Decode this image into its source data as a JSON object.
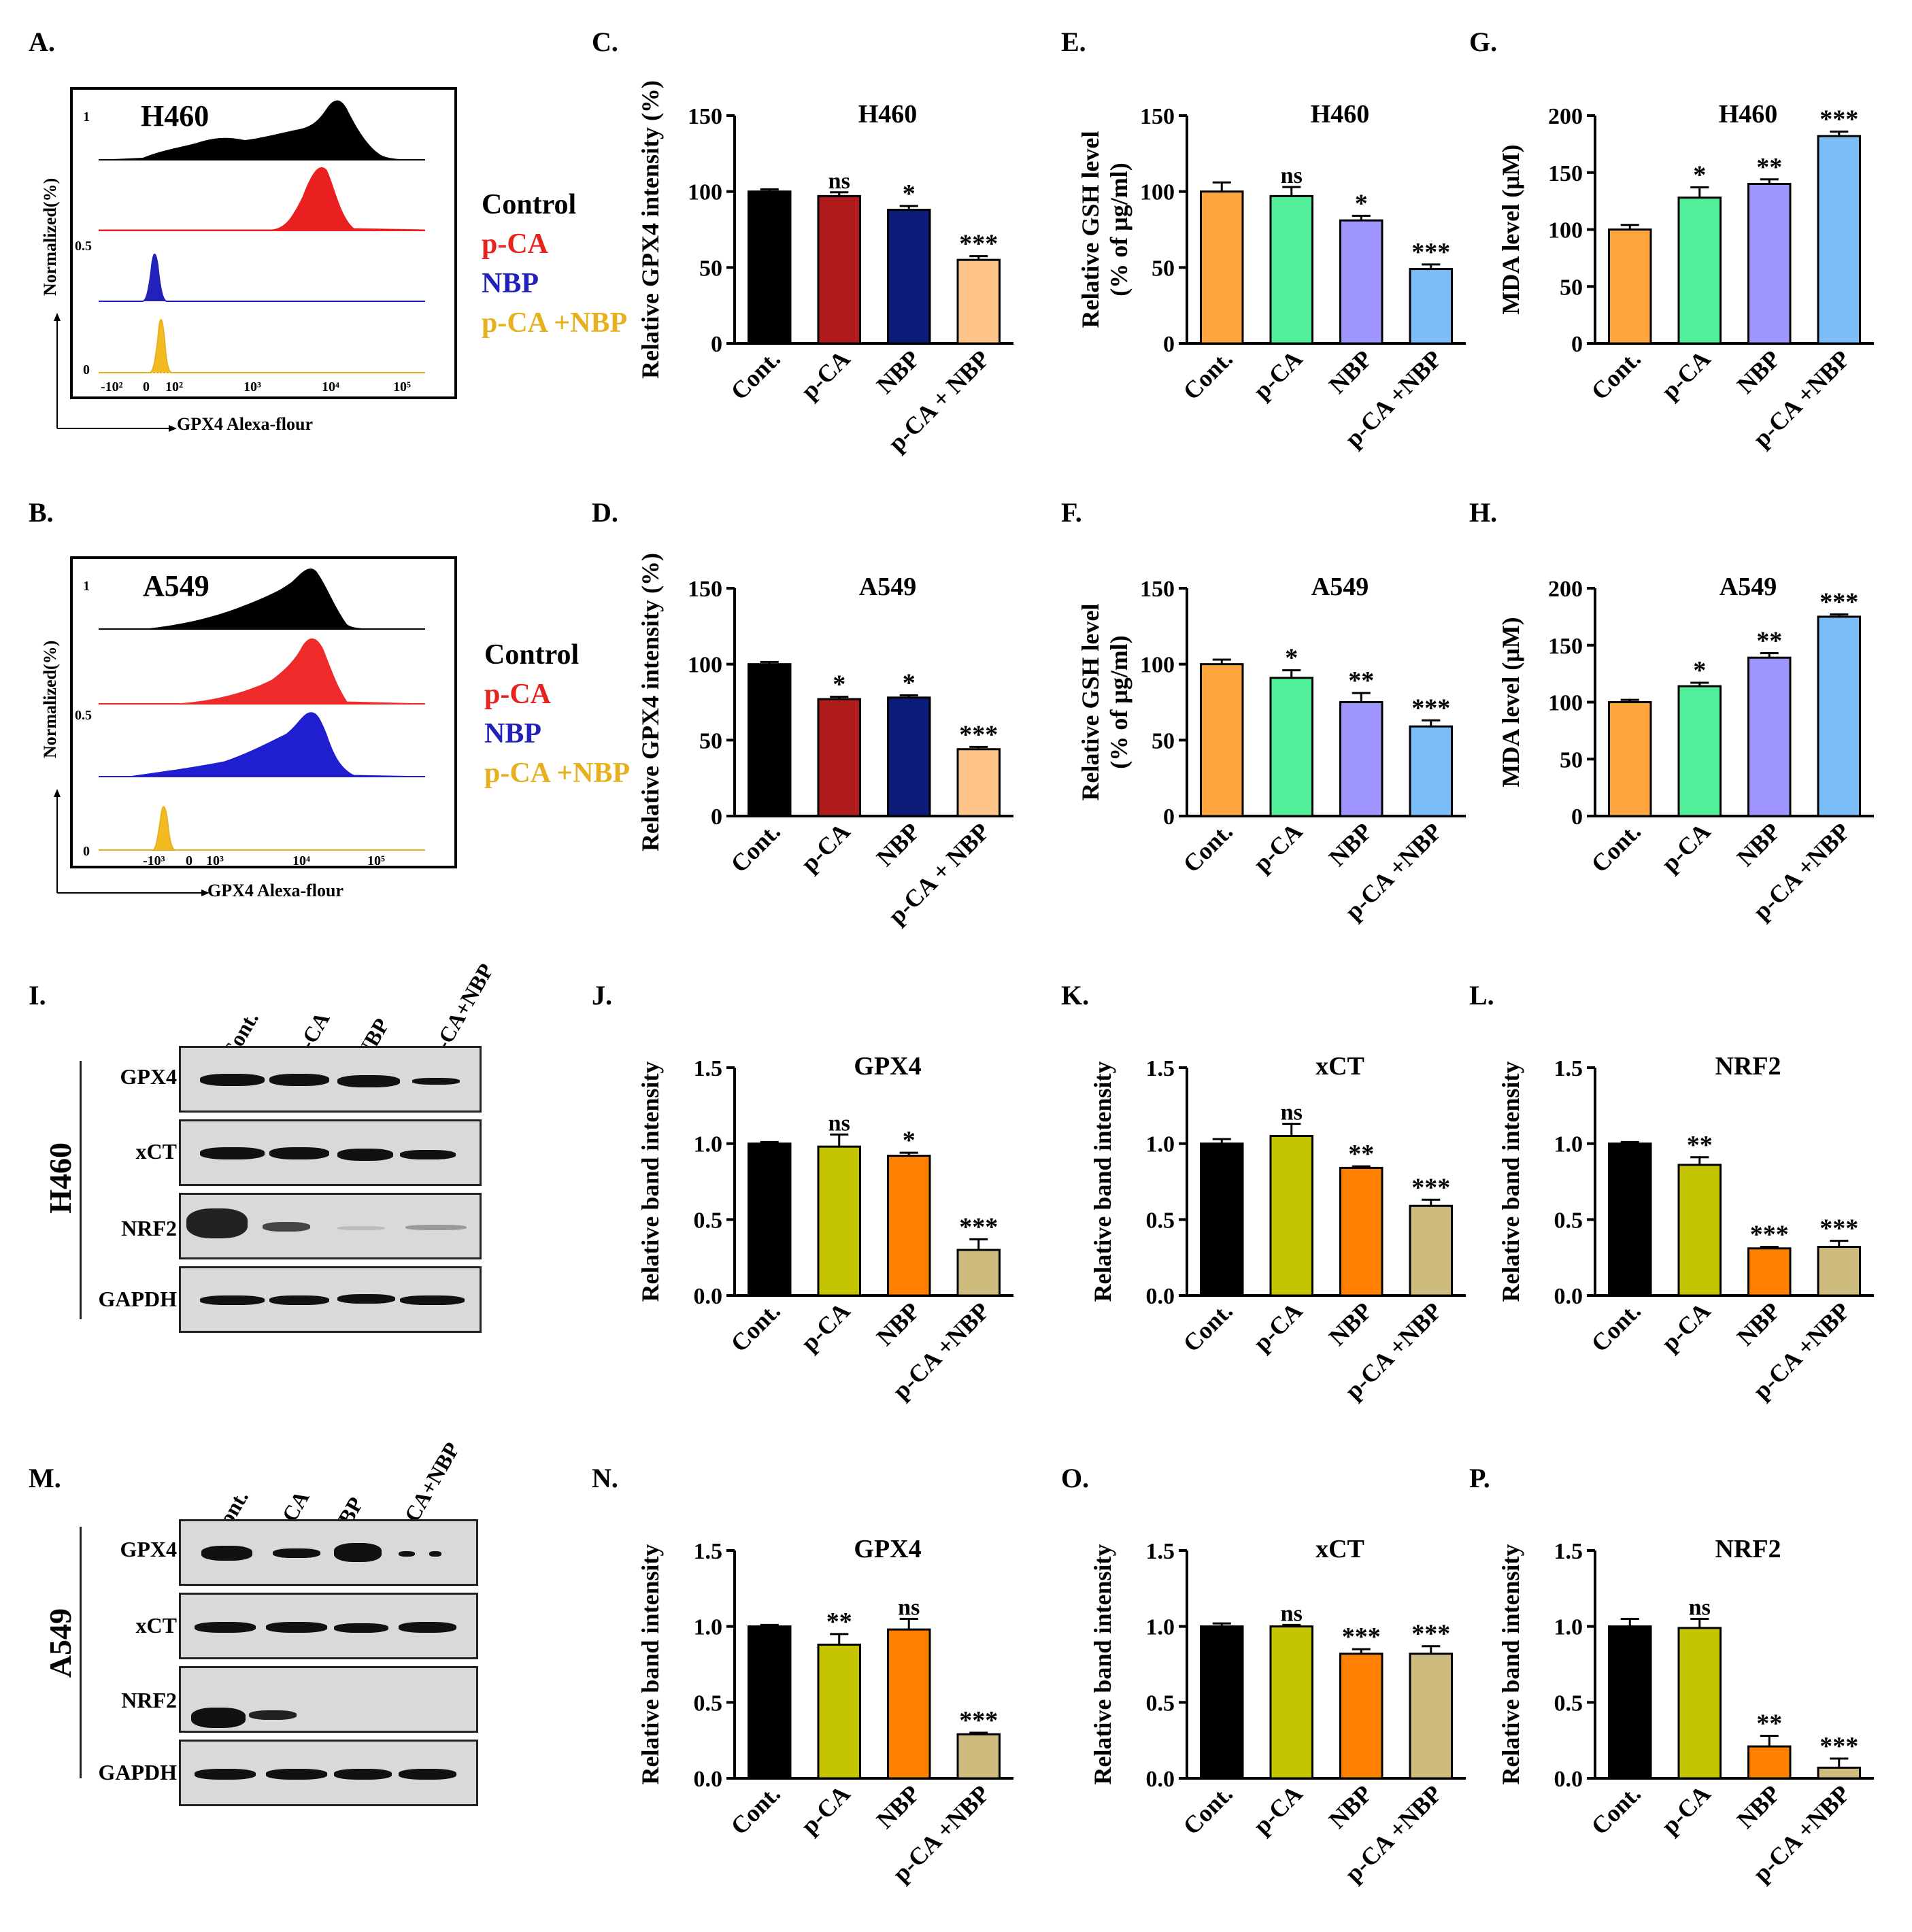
{
  "panels": {
    "A": "A.",
    "B": "B.",
    "C": "C.",
    "D": "D.",
    "E": "E.",
    "F": "F.",
    "G": "G.",
    "H": "H.",
    "I": "I.",
    "J": "J.",
    "K": "K.",
    "L": "L.",
    "M": "M.",
    "N": "N.",
    "O": "O.",
    "P": "P."
  },
  "legend": {
    "control": "Control",
    "pca": "p-CA",
    "nbp": "NBP",
    "combo": "p-CA +NBP",
    "colors": {
      "control": "#000000",
      "pca": "#e8221d",
      "nbp": "#2222bb",
      "combo": "#e6b01e"
    }
  },
  "flow": {
    "A": {
      "cell_line": "H460",
      "xlabel": "GPX4 Alexa-flour",
      "ylabel": "Normalized(%)",
      "yticks": [
        "1",
        "0.5",
        "0"
      ],
      "xticks": [
        "-10²",
        "0",
        "10²",
        "10³",
        "10⁴",
        "10⁵"
      ]
    },
    "B": {
      "cell_line": "A549",
      "xlabel": "GPX4 Alexa-flour",
      "ylabel": "Normalized(%)",
      "yticks": [
        "1",
        "0.5",
        "0"
      ],
      "xticks": [
        "-10³",
        "0",
        "10³",
        "10⁴",
        "10⁵"
      ]
    }
  },
  "western": {
    "I": {
      "cell_line": "H460",
      "lanes": [
        "Cont.",
        "p-CA",
        "NBP",
        "p-CA+NBP"
      ],
      "rows": [
        "GPX4",
        "xCT",
        "NRF2",
        "GAPDH"
      ]
    },
    "M": {
      "cell_line": "A549",
      "lanes": [
        "Cont.",
        "p-CA",
        "NBP",
        "p-CA+NBP"
      ],
      "rows": [
        "GPX4",
        "xCT",
        "NRF2",
        "GAPDH"
      ]
    }
  },
  "chart_data": [
    {
      "id": "C",
      "type": "bar",
      "title": "H460",
      "ylabel": "Relative GPX4 intensity (%)",
      "ylim": [
        0,
        150
      ],
      "yticks": [
        0,
        50,
        100,
        150
      ],
      "categories": [
        "Cont.",
        "p-CA",
        "NBP",
        "p-CA + NBP"
      ],
      "values": [
        100,
        97,
        88,
        55
      ],
      "errors": [
        1.5,
        2.5,
        2.5,
        2.5
      ],
      "sig": [
        "",
        "ns",
        "*",
        "***"
      ],
      "colors": [
        "#000000",
        "#b01c1c",
        "#0c1a78",
        "#ffc48a"
      ]
    },
    {
      "id": "D",
      "type": "bar",
      "title": "A549",
      "ylabel": "Relative GPX4 intensity (%)",
      "ylim": [
        0,
        150
      ],
      "yticks": [
        0,
        50,
        100,
        150
      ],
      "categories": [
        "Cont.",
        "p-CA",
        "NBP",
        "p-CA + NBP"
      ],
      "values": [
        100,
        77,
        78,
        44
      ],
      "errors": [
        1.5,
        1.5,
        1.5,
        1.5
      ],
      "sig": [
        "",
        "*",
        "*",
        "***"
      ],
      "colors": [
        "#000000",
        "#b01c1c",
        "#0c1a78",
        "#ffc48a"
      ]
    },
    {
      "id": "E",
      "type": "bar",
      "title": "H460",
      "ylabel": "Relative GSH level",
      "ylabel2": "(% of μg/ml)",
      "ylim": [
        0,
        150
      ],
      "yticks": [
        0,
        50,
        100,
        150
      ],
      "categories": [
        "Cont.",
        "p-CA",
        "NBP",
        "p-CA +NBP"
      ],
      "values": [
        100,
        97,
        81,
        49
      ],
      "errors": [
        6,
        6,
        3,
        3
      ],
      "sig": [
        "",
        "ns",
        "*",
        "***"
      ],
      "colors": [
        "#ffa53d",
        "#52ef9a",
        "#9f95ff",
        "#7bbdf7"
      ]
    },
    {
      "id": "F",
      "type": "bar",
      "title": "A549",
      "ylabel": "Relative GSH level",
      "ylabel2": "(% of μg/ml)",
      "ylim": [
        0,
        150
      ],
      "yticks": [
        0,
        50,
        100,
        150
      ],
      "categories": [
        "Cont.",
        "p-CA",
        "NBP",
        "p-CA +NBP"
      ],
      "values": [
        100,
        91,
        75,
        59
      ],
      "errors": [
        3,
        5,
        6,
        4
      ],
      "sig": [
        "",
        "*",
        "**",
        "***"
      ],
      "colors": [
        "#ffa53d",
        "#52ef9a",
        "#9f95ff",
        "#7bbdf7"
      ]
    },
    {
      "id": "G",
      "type": "bar",
      "title": "H460",
      "ylabel": "MDA level (μM)",
      "ylim": [
        0,
        200
      ],
      "yticks": [
        0,
        50,
        100,
        150,
        200
      ],
      "categories": [
        "Cont.",
        "p-CA",
        "NBP",
        "p-CA +NBP"
      ],
      "values": [
        100,
        128,
        140,
        182
      ],
      "errors": [
        4,
        9,
        4,
        4
      ],
      "sig": [
        "",
        "*",
        "**",
        "***"
      ],
      "colors": [
        "#ffa53d",
        "#52ef9a",
        "#9f95ff",
        "#7bbdf7"
      ]
    },
    {
      "id": "H",
      "type": "bar",
      "title": "A549",
      "ylabel": "MDA level (μM)",
      "ylim": [
        0,
        200
      ],
      "yticks": [
        0,
        50,
        100,
        150,
        200
      ],
      "categories": [
        "Cont.",
        "p-CA",
        "NBP",
        "p-CA +NBP"
      ],
      "values": [
        100,
        114,
        139,
        175
      ],
      "errors": [
        2,
        3,
        4,
        2
      ],
      "sig": [
        "",
        "*",
        "**",
        "***"
      ],
      "colors": [
        "#ffa53d",
        "#52ef9a",
        "#9f95ff",
        "#7bbdf7"
      ]
    },
    {
      "id": "J",
      "type": "bar",
      "title": "GPX4",
      "ylabel": "Relative band intensity",
      "ylim": [
        0,
        1.5
      ],
      "yticks": [
        0.0,
        0.5,
        1.0,
        1.5
      ],
      "categories": [
        "Cont.",
        "p-CA",
        "NBP",
        "p-CA +NBP"
      ],
      "values": [
        1.0,
        0.98,
        0.92,
        0.3
      ],
      "errors": [
        0.01,
        0.08,
        0.02,
        0.07
      ],
      "sig": [
        "",
        "ns",
        "*",
        "***"
      ],
      "colors": [
        "#000000",
        "#c4c400",
        "#ff8000",
        "#cdbc7e"
      ]
    },
    {
      "id": "K",
      "type": "bar",
      "title": "xCT",
      "ylabel": "Relative band intensity",
      "ylim": [
        0,
        1.5
      ],
      "yticks": [
        0.0,
        0.5,
        1.0,
        1.5
      ],
      "categories": [
        "Cont.",
        "p-CA",
        "NBP",
        "p-CA +NBP"
      ],
      "values": [
        1.0,
        1.05,
        0.84,
        0.59
      ],
      "errors": [
        0.03,
        0.08,
        0.01,
        0.04
      ],
      "sig": [
        "",
        "ns",
        "**",
        "***"
      ],
      "colors": [
        "#000000",
        "#c4c400",
        "#ff8000",
        "#cdbc7e"
      ]
    },
    {
      "id": "L",
      "type": "bar",
      "title": "NRF2",
      "ylabel": "Relative band intensity",
      "ylim": [
        0,
        1.5
      ],
      "yticks": [
        0.0,
        0.5,
        1.0,
        1.5
      ],
      "categories": [
        "Cont.",
        "p-CA",
        "NBP",
        "p-CA +NBP"
      ],
      "values": [
        1.0,
        0.86,
        0.31,
        0.32
      ],
      "errors": [
        0.01,
        0.05,
        0.01,
        0.04
      ],
      "sig": [
        "",
        "**",
        "***",
        "***"
      ],
      "colors": [
        "#000000",
        "#c4c400",
        "#ff8000",
        "#cdbc7e"
      ]
    },
    {
      "id": "N",
      "type": "bar",
      "title": "GPX4",
      "ylabel": "Relative band intensity",
      "ylim": [
        0,
        1.5
      ],
      "yticks": [
        0.0,
        0.5,
        1.0,
        1.5
      ],
      "categories": [
        "Cont.",
        "p-CA",
        "NBP",
        "p-CA +NBP"
      ],
      "values": [
        1.0,
        0.88,
        0.98,
        0.29
      ],
      "errors": [
        0.01,
        0.07,
        0.07,
        0.01
      ],
      "sig": [
        "",
        "**",
        "ns",
        "***"
      ],
      "colors": [
        "#000000",
        "#c4c400",
        "#ff8000",
        "#cdbc7e"
      ]
    },
    {
      "id": "O",
      "type": "bar",
      "title": "xCT",
      "ylabel": "Relative band intensity",
      "ylim": [
        0,
        1.5
      ],
      "yticks": [
        0.0,
        0.5,
        1.0,
        1.5
      ],
      "categories": [
        "Cont.",
        "p-CA",
        "NBP",
        "p-CA +NBP"
      ],
      "values": [
        1.0,
        1.0,
        0.82,
        0.82
      ],
      "errors": [
        0.02,
        0.01,
        0.03,
        0.05
      ],
      "sig": [
        "",
        "ns",
        "***",
        "***"
      ],
      "colors": [
        "#000000",
        "#c4c400",
        "#ff8000",
        "#cdbc7e"
      ]
    },
    {
      "id": "P",
      "type": "bar",
      "title": "NRF2",
      "ylabel": "Relative band intensity",
      "ylim": [
        0,
        1.5
      ],
      "yticks": [
        0.0,
        0.5,
        1.0,
        1.5
      ],
      "categories": [
        "Cont.",
        "p-CA",
        "NBP",
        "p-CA +NBP"
      ],
      "values": [
        1.0,
        0.99,
        0.21,
        0.07
      ],
      "errors": [
        0.05,
        0.06,
        0.07,
        0.06
      ],
      "sig": [
        "",
        "ns",
        "**",
        "***"
      ],
      "colors": [
        "#000000",
        "#c4c400",
        "#ff8000",
        "#cdbc7e"
      ]
    }
  ]
}
